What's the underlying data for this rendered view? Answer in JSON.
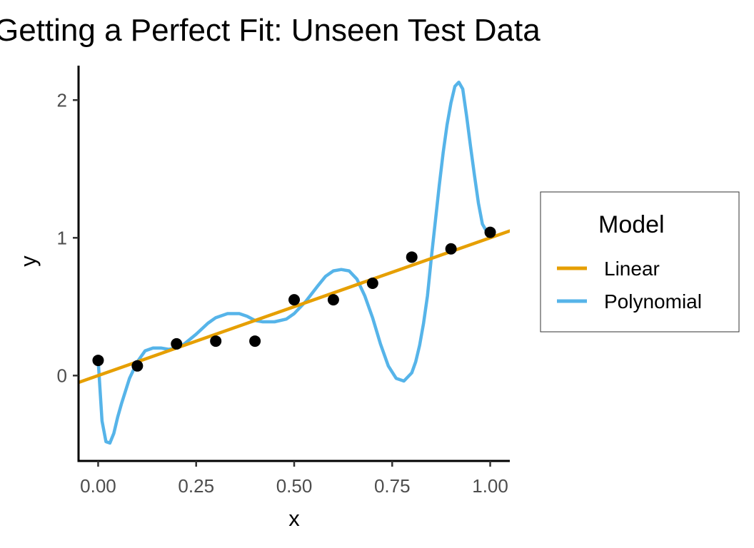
{
  "chart_data": {
    "type": "line",
    "title": "Getting a Perfect Fit: Unseen Test Data",
    "xlabel": "x",
    "ylabel": "y",
    "xlim": [
      -0.05,
      1.05
    ],
    "ylim": [
      -0.62,
      2.25
    ],
    "x_ticks": [
      0,
      0.25,
      0.5,
      0.75,
      1
    ],
    "x_tick_labels": [
      "0.00",
      "0.25",
      "0.50",
      "0.75",
      "1.00"
    ],
    "y_ticks": [
      0,
      1,
      2
    ],
    "y_tick_labels": [
      "0",
      "1",
      "2"
    ],
    "grid": false,
    "legend": {
      "title": "Model",
      "position": "right",
      "entries": [
        {
          "label": "Linear",
          "color": "#E69F00"
        },
        {
          "label": "Polynomial",
          "color": "#56B4E9"
        }
      ]
    },
    "points": {
      "color": "#000000",
      "x": [
        0,
        0.1,
        0.2,
        0.3,
        0.4,
        0.5,
        0.6,
        0.7,
        0.8,
        0.9,
        1.0
      ],
      "y": [
        0.11,
        0.07,
        0.23,
        0.25,
        0.25,
        0.55,
        0.55,
        0.67,
        0.86,
        0.92,
        1.04
      ]
    },
    "series": [
      {
        "name": "Linear",
        "color": "#E69F00",
        "x": [
          -0.05,
          1.05
        ],
        "y": [
          -0.05,
          1.05
        ]
      },
      {
        "name": "Polynomial",
        "color": "#56B4E9",
        "x": [
          0,
          0.01,
          0.02,
          0.03,
          0.04,
          0.05,
          0.06,
          0.08,
          0.1,
          0.12,
          0.14,
          0.16,
          0.18,
          0.2,
          0.22,
          0.25,
          0.28,
          0.3,
          0.33,
          0.36,
          0.38,
          0.4,
          0.42,
          0.45,
          0.48,
          0.5,
          0.53,
          0.56,
          0.58,
          0.6,
          0.62,
          0.64,
          0.66,
          0.68,
          0.7,
          0.72,
          0.74,
          0.76,
          0.78,
          0.8,
          0.81,
          0.82,
          0.83,
          0.84,
          0.85,
          0.86,
          0.87,
          0.88,
          0.89,
          0.9,
          0.91,
          0.92,
          0.93,
          0.94,
          0.95,
          0.96,
          0.97,
          0.98,
          0.99,
          1.0
        ],
        "y": [
          0.11,
          -0.33,
          -0.48,
          -0.49,
          -0.42,
          -0.3,
          -0.2,
          -0.02,
          0.1,
          0.18,
          0.2,
          0.2,
          0.19,
          0.2,
          0.23,
          0.3,
          0.38,
          0.42,
          0.45,
          0.45,
          0.43,
          0.4,
          0.39,
          0.39,
          0.41,
          0.45,
          0.54,
          0.65,
          0.72,
          0.76,
          0.77,
          0.76,
          0.7,
          0.58,
          0.42,
          0.23,
          0.07,
          -0.02,
          -0.04,
          0.02,
          0.1,
          0.22,
          0.38,
          0.58,
          0.86,
          1.12,
          1.38,
          1.62,
          1.82,
          1.98,
          2.1,
          2.13,
          2.08,
          1.88,
          1.66,
          1.45,
          1.25,
          1.1,
          1.05,
          1.04
        ]
      }
    ]
  }
}
